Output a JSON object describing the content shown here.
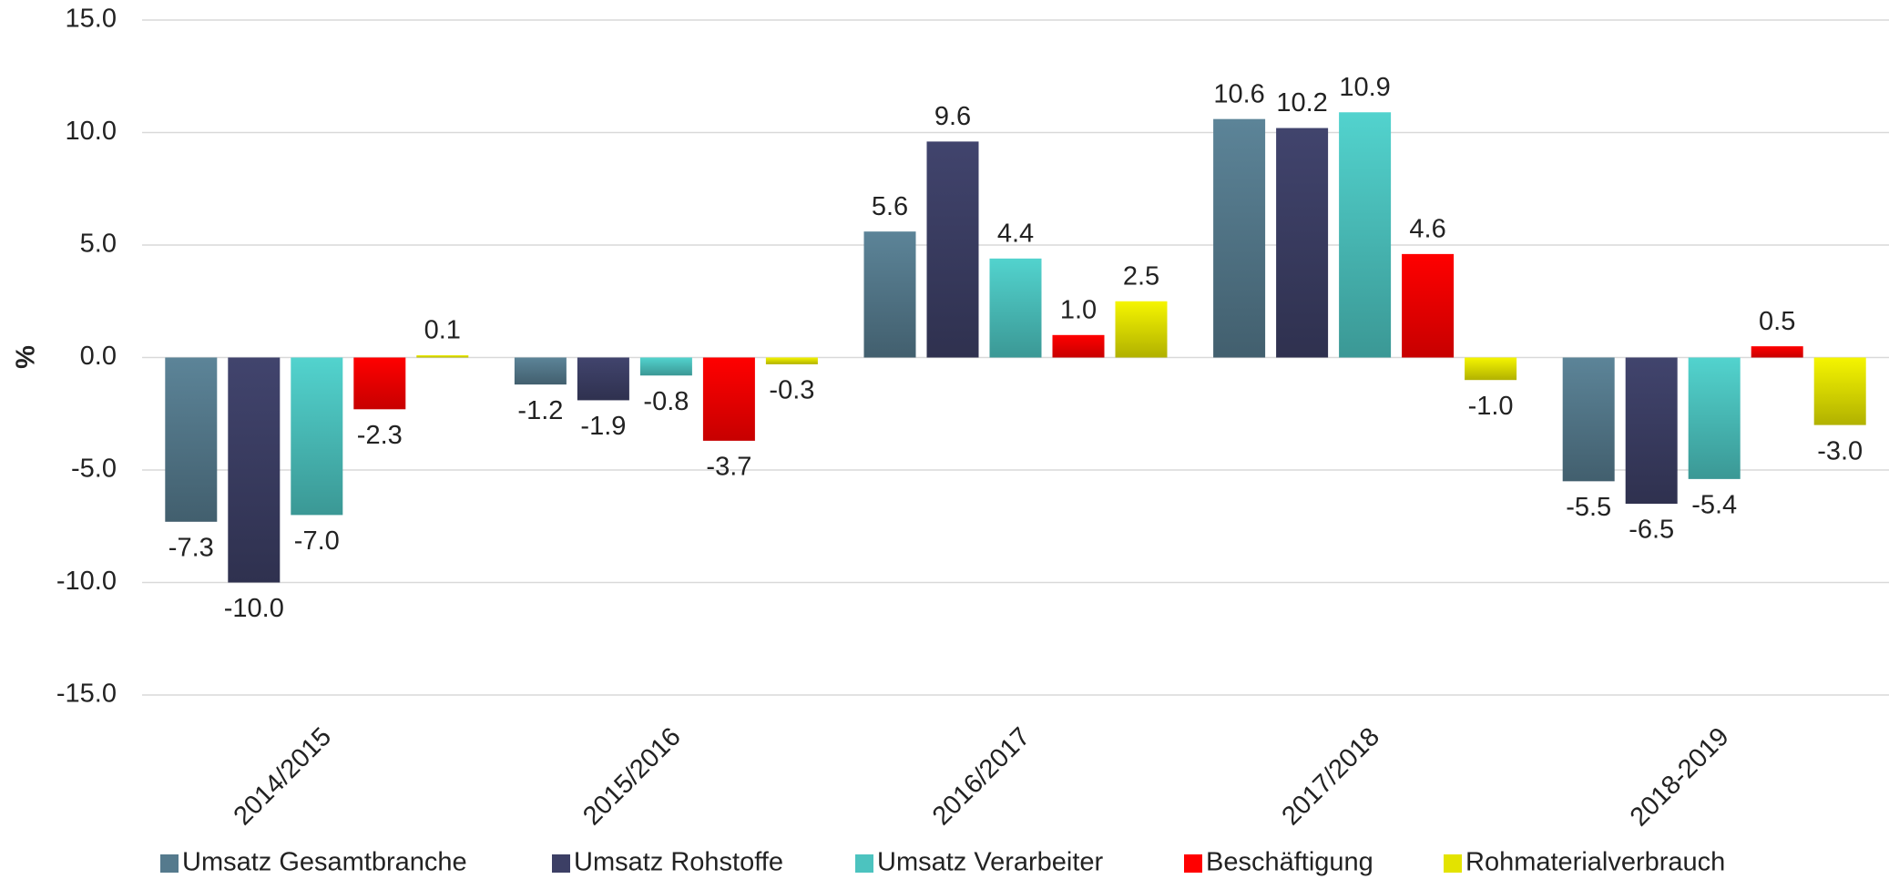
{
  "chart_data": {
    "type": "bar",
    "y_label": "%",
    "categories": [
      "2014/2015",
      "2015/2016",
      "2016/2017",
      "2017/2018",
      "2018-2019"
    ],
    "series": [
      {
        "name": "Umsatz Gesamtbranche",
        "color": "#557a8d",
        "values": [
          -7.3,
          -1.2,
          5.6,
          10.6,
          -5.5
        ],
        "value_labels": [
          "-7.3",
          "-1.2",
          "5.6",
          "10.6",
          "-5.5"
        ]
      },
      {
        "name": "Umsatz Rohstoffe",
        "color": "#3c3f65",
        "values": [
          -10.0,
          -1.9,
          9.6,
          10.2,
          -6.5
        ],
        "value_labels": [
          "-10.0",
          "-1.9",
          "9.6",
          "10.2",
          "-6.5"
        ]
      },
      {
        "name": "Umsatz Verarbeiter",
        "color": "#4cc3bf",
        "values": [
          -7.0,
          -0.8,
          4.4,
          10.9,
          -5.4
        ],
        "value_labels": [
          "-7.0",
          "-0.8",
          "4.4",
          "10.9",
          "-5.4"
        ]
      },
      {
        "name": "Beschäftigung",
        "color": "#ff0000",
        "values": [
          -2.3,
          -3.7,
          1.0,
          4.6,
          0.5
        ],
        "value_labels": [
          "-2.3",
          "-3.7",
          "1.0",
          "4.6",
          "0.5"
        ]
      },
      {
        "name": "Rohmaterialverbrauch",
        "color": "#e3e300",
        "values": [
          0.1,
          -0.3,
          2.5,
          -1.0,
          -3.0
        ],
        "value_labels": [
          "0.1",
          "-0.3",
          "2.5",
          "-1.0",
          "-3.0"
        ]
      }
    ],
    "ylim": [
      -15,
      15
    ],
    "yticks": [
      {
        "value": -15,
        "label": "-15.0"
      },
      {
        "value": -10,
        "label": "-10.0"
      },
      {
        "value": -5,
        "label": "-5.0"
      },
      {
        "value": 0,
        "label": "0.0"
      },
      {
        "value": 5,
        "label": "5.0"
      },
      {
        "value": 10,
        "label": "10.0"
      },
      {
        "value": 15,
        "label": "15.0"
      }
    ],
    "grid": true,
    "legend": "bottom"
  }
}
